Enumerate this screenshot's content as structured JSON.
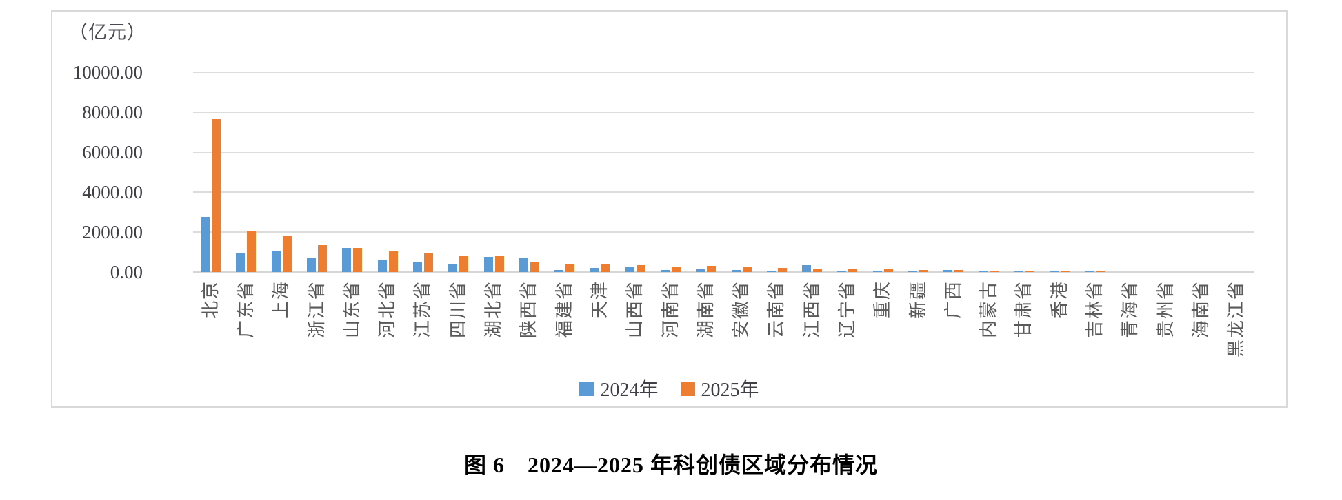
{
  "figure_caption": "图 6　2024—2025 年科创债区域分布情况",
  "colors": {
    "series_2024": "#5B9BD5",
    "series_2025": "#ED7D31",
    "gridline": "#DCDCDC",
    "frame_border": "#D9D9D9",
    "axis_text": "#3F3F46",
    "category_text": "#595959"
  },
  "chart_data": {
    "type": "bar",
    "title": "",
    "ylabel": "（亿元）",
    "xlabel": "",
    "ylim": [
      0,
      10000
    ],
    "ytick_interval": 2000,
    "ytick_labels": [
      "0.00",
      "2000.00",
      "4000.00",
      "6000.00",
      "8000.00",
      "10000.00"
    ],
    "grid": true,
    "legend_position": "bottom",
    "categories": [
      "北京",
      "广东省",
      "上海",
      "浙江省",
      "山东省",
      "河北省",
      "江苏省",
      "四川省",
      "湖北省",
      "陕西省",
      "福建省",
      "天津",
      "山西省",
      "河南省",
      "湖南省",
      "安徽省",
      "云南省",
      "江西省",
      "辽宁省",
      "重庆",
      "新疆",
      "广西",
      "内蒙古",
      "甘肃省",
      "香港",
      "吉林省",
      "青海省",
      "贵州省",
      "海南省",
      "黑龙江省"
    ],
    "series": [
      {
        "name": "2024年",
        "color": "#5B9BD5",
        "values": [
          2770,
          930,
          1030,
          710,
          1220,
          600,
          470,
          380,
          750,
          680,
          95,
          220,
          290,
          95,
          130,
          120,
          60,
          330,
          45,
          10,
          35,
          95,
          20,
          10,
          40,
          5,
          0,
          0,
          0,
          0
        ]
      },
      {
        "name": "2025年",
        "color": "#ED7D31",
        "values": [
          7650,
          2050,
          1780,
          1350,
          1200,
          1060,
          980,
          810,
          780,
          530,
          420,
          400,
          360,
          280,
          320,
          250,
          220,
          190,
          190,
          130,
          120,
          105,
          85,
          60,
          25,
          35,
          0,
          0,
          0,
          0
        ]
      }
    ]
  }
}
